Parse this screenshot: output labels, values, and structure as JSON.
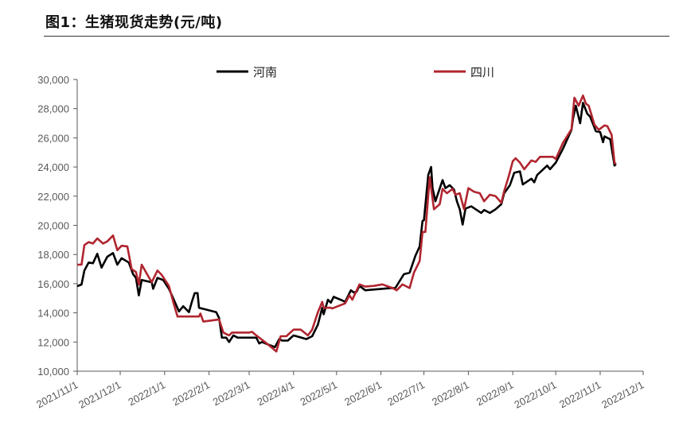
{
  "title": "图1：生猪现货走势(元/吨)",
  "chart_data": {
    "type": "line",
    "title": "图1：生猪现货走势(元/吨)",
    "xlabel": "",
    "ylabel": "",
    "ylim": [
      10000,
      30000
    ],
    "yticks": [
      10000,
      12000,
      14000,
      16000,
      18000,
      20000,
      22000,
      24000,
      26000,
      28000,
      30000
    ],
    "ytick_labels": [
      "10,000",
      "12,000",
      "14,000",
      "16,000",
      "18,000",
      "20,000",
      "22,000",
      "24,000",
      "26,000",
      "28,000",
      "30,000"
    ],
    "xlim": [
      "2021-11-01",
      "2022-12-01"
    ],
    "xtick_labels": [
      "2021/11/1",
      "2021/12/1",
      "2022/1/1",
      "2022/2/1",
      "2022/3/1",
      "2022/4/1",
      "2022/5/1",
      "2022/6/1",
      "2022/7/1",
      "2022/8/1",
      "2022/9/1",
      "2022/10/1",
      "2022/11/1",
      "2022/12/1"
    ],
    "grid": false,
    "legend_position": "top",
    "series": [
      {
        "name": "河南",
        "color": "#000000",
        "points": [
          [
            "2021-11-01",
            15830
          ],
          [
            "2021-11-04",
            15940
          ],
          [
            "2021-11-06",
            16900
          ],
          [
            "2021-11-09",
            17450
          ],
          [
            "2021-11-12",
            17400
          ],
          [
            "2021-11-15",
            18050
          ],
          [
            "2021-11-18",
            17100
          ],
          [
            "2021-11-22",
            17850
          ],
          [
            "2021-11-26",
            18100
          ],
          [
            "2021-11-29",
            17300
          ],
          [
            "2021-12-02",
            17750
          ],
          [
            "2021-12-07",
            17450
          ],
          [
            "2021-12-10",
            16650
          ],
          [
            "2021-12-12",
            16400
          ],
          [
            "2021-12-14",
            15200
          ],
          [
            "2021-12-16",
            16250
          ],
          [
            "2021-12-23",
            16100
          ],
          [
            "2021-12-24",
            15650
          ],
          [
            "2021-12-27",
            16400
          ],
          [
            "2021-12-31",
            16250
          ],
          [
            "2022-01-04",
            15650
          ],
          [
            "2022-01-07",
            15000
          ],
          [
            "2022-01-11",
            14100
          ],
          [
            "2022-01-14",
            14450
          ],
          [
            "2022-01-18",
            14050
          ],
          [
            "2022-01-20",
            14750
          ],
          [
            "2022-01-22",
            15350
          ],
          [
            "2022-01-24",
            15350
          ],
          [
            "2022-01-25",
            14350
          ],
          [
            "2022-02-06",
            14050
          ],
          [
            "2022-02-08",
            13650
          ],
          [
            "2022-02-10",
            12300
          ],
          [
            "2022-02-13",
            12300
          ],
          [
            "2022-02-15",
            12000
          ],
          [
            "2022-02-18",
            12450
          ],
          [
            "2022-02-21",
            12300
          ],
          [
            "2022-03-06",
            12300
          ],
          [
            "2022-03-08",
            11900
          ],
          [
            "2022-03-10",
            12000
          ],
          [
            "2022-03-15",
            11800
          ],
          [
            "2022-03-19",
            11650
          ],
          [
            "2022-03-22",
            12200
          ],
          [
            "2022-03-24",
            12100
          ],
          [
            "2022-03-28",
            12100
          ],
          [
            "2022-04-01",
            12450
          ],
          [
            "2022-04-10",
            12200
          ],
          [
            "2022-04-14",
            12400
          ],
          [
            "2022-04-18",
            13200
          ],
          [
            "2022-04-21",
            14350
          ],
          [
            "2022-04-22",
            13900
          ],
          [
            "2022-04-25",
            14900
          ],
          [
            "2022-04-27",
            14700
          ],
          [
            "2022-04-29",
            15100
          ],
          [
            "2022-05-05",
            14850
          ],
          [
            "2022-05-07",
            14750
          ],
          [
            "2022-05-11",
            15550
          ],
          [
            "2022-05-13",
            15400
          ],
          [
            "2022-05-15",
            15450
          ],
          [
            "2022-05-17",
            15850
          ],
          [
            "2022-05-21",
            15550
          ],
          [
            "2022-06-08",
            15700
          ],
          [
            "2022-06-11",
            15700
          ],
          [
            "2022-06-17",
            16650
          ],
          [
            "2022-06-21",
            16750
          ],
          [
            "2022-06-25",
            17900
          ],
          [
            "2022-06-28",
            18550
          ],
          [
            "2022-06-30",
            20300
          ],
          [
            "2022-07-01",
            20350
          ],
          [
            "2022-07-04",
            23450
          ],
          [
            "2022-07-06",
            24000
          ],
          [
            "2022-07-07",
            22550
          ],
          [
            "2022-07-09",
            21650
          ],
          [
            "2022-07-14",
            23100
          ],
          [
            "2022-07-16",
            22550
          ],
          [
            "2022-07-19",
            22750
          ],
          [
            "2022-07-22",
            22450
          ],
          [
            "2022-07-24",
            21650
          ],
          [
            "2022-07-26",
            21100
          ],
          [
            "2022-07-28",
            20050
          ],
          [
            "2022-07-30",
            21150
          ],
          [
            "2022-08-03",
            21300
          ],
          [
            "2022-08-10",
            20850
          ],
          [
            "2022-08-12",
            21050
          ],
          [
            "2022-08-16",
            20850
          ],
          [
            "2022-08-20",
            21100
          ],
          [
            "2022-08-24",
            21450
          ],
          [
            "2022-08-26",
            22200
          ],
          [
            "2022-08-30",
            22750
          ],
          [
            "2022-09-02",
            23600
          ],
          [
            "2022-09-06",
            23700
          ],
          [
            "2022-09-08",
            22800
          ],
          [
            "2022-09-14",
            23200
          ],
          [
            "2022-09-16",
            22950
          ],
          [
            "2022-09-18",
            23450
          ],
          [
            "2022-09-25",
            24100
          ],
          [
            "2022-09-27",
            23850
          ],
          [
            "2022-10-01",
            24300
          ],
          [
            "2022-10-06",
            25250
          ],
          [
            "2022-10-12",
            26550
          ],
          [
            "2022-10-13",
            27300
          ],
          [
            "2022-10-15",
            28200
          ],
          [
            "2022-10-18",
            27000
          ],
          [
            "2022-10-20",
            28400
          ],
          [
            "2022-10-23",
            27650
          ],
          [
            "2022-10-25",
            27450
          ],
          [
            "2022-10-29",
            26450
          ],
          [
            "2022-11-01",
            26400
          ],
          [
            "2022-11-03",
            25700
          ],
          [
            "2022-11-04",
            26100
          ],
          [
            "2022-11-08",
            25900
          ],
          [
            "2022-11-11",
            24100
          ],
          [
            "2022-11-12",
            24200
          ]
        ]
      },
      {
        "name": "四川",
        "color": "#b0252f",
        "points": [
          [
            "2021-11-01",
            17300
          ],
          [
            "2021-11-04",
            17300
          ],
          [
            "2021-11-06",
            18650
          ],
          [
            "2021-11-09",
            18850
          ],
          [
            "2021-11-12",
            18750
          ],
          [
            "2021-11-15",
            19100
          ],
          [
            "2021-11-19",
            18750
          ],
          [
            "2021-11-22",
            18900
          ],
          [
            "2021-11-26",
            19300
          ],
          [
            "2021-11-29",
            18300
          ],
          [
            "2021-12-02",
            18600
          ],
          [
            "2021-12-06",
            18550
          ],
          [
            "2021-12-09",
            17000
          ],
          [
            "2021-12-12",
            16800
          ],
          [
            "2021-12-14",
            15950
          ],
          [
            "2021-12-16",
            17300
          ],
          [
            "2021-12-23",
            16100
          ],
          [
            "2021-12-27",
            16900
          ],
          [
            "2021-12-30",
            16600
          ],
          [
            "2022-01-04",
            15850
          ],
          [
            "2022-01-07",
            14750
          ],
          [
            "2022-01-10",
            13750
          ],
          [
            "2022-01-25",
            13750
          ],
          [
            "2022-01-26",
            13950
          ],
          [
            "2022-01-28",
            13400
          ],
          [
            "2022-02-08",
            13550
          ],
          [
            "2022-02-11",
            12650
          ],
          [
            "2022-02-15",
            12450
          ],
          [
            "2022-02-17",
            12650
          ],
          [
            "2022-03-01",
            12650
          ],
          [
            "2022-03-03",
            12700
          ],
          [
            "2022-03-06",
            12450
          ],
          [
            "2022-03-12",
            12000
          ],
          [
            "2022-03-17",
            11600
          ],
          [
            "2022-03-20",
            11350
          ],
          [
            "2022-03-23",
            12400
          ],
          [
            "2022-03-27",
            12400
          ],
          [
            "2022-04-01",
            12850
          ],
          [
            "2022-04-06",
            12850
          ],
          [
            "2022-04-11",
            12450
          ],
          [
            "2022-04-14",
            12850
          ],
          [
            "2022-04-18",
            14050
          ],
          [
            "2022-04-21",
            14750
          ],
          [
            "2022-04-22",
            14350
          ],
          [
            "2022-04-27",
            14350
          ],
          [
            "2022-04-28",
            14300
          ],
          [
            "2022-05-07",
            14650
          ],
          [
            "2022-05-10",
            15200
          ],
          [
            "2022-05-12",
            14900
          ],
          [
            "2022-05-17",
            15950
          ],
          [
            "2022-05-21",
            15800
          ],
          [
            "2022-05-27",
            15850
          ],
          [
            "2022-06-02",
            15950
          ],
          [
            "2022-06-09",
            15700
          ],
          [
            "2022-06-12",
            15550
          ],
          [
            "2022-06-16",
            15950
          ],
          [
            "2022-06-21",
            15700
          ],
          [
            "2022-06-24",
            16750
          ],
          [
            "2022-06-28",
            17550
          ],
          [
            "2022-06-30",
            19550
          ],
          [
            "2022-07-02",
            19550
          ],
          [
            "2022-07-05",
            23300
          ],
          [
            "2022-07-08",
            21100
          ],
          [
            "2022-07-12",
            21450
          ],
          [
            "2022-07-14",
            22500
          ],
          [
            "2022-07-17",
            22200
          ],
          [
            "2022-07-21",
            22500
          ],
          [
            "2022-07-23",
            22100
          ],
          [
            "2022-07-26",
            22200
          ],
          [
            "2022-07-29",
            21100
          ],
          [
            "2022-08-01",
            22550
          ],
          [
            "2022-08-05",
            22300
          ],
          [
            "2022-08-09",
            22200
          ],
          [
            "2022-08-12",
            21650
          ],
          [
            "2022-08-16",
            22100
          ],
          [
            "2022-08-20",
            22000
          ],
          [
            "2022-08-24",
            21550
          ],
          [
            "2022-08-26",
            22350
          ],
          [
            "2022-08-29",
            23300
          ],
          [
            "2022-09-01",
            24400
          ],
          [
            "2022-09-03",
            24600
          ],
          [
            "2022-09-06",
            24300
          ],
          [
            "2022-09-09",
            23850
          ],
          [
            "2022-09-14",
            24450
          ],
          [
            "2022-09-17",
            24350
          ],
          [
            "2022-09-20",
            24700
          ],
          [
            "2022-09-29",
            24700
          ],
          [
            "2022-10-01",
            24550
          ],
          [
            "2022-10-06",
            25650
          ],
          [
            "2022-10-12",
            26600
          ],
          [
            "2022-10-14",
            28750
          ],
          [
            "2022-10-17",
            28200
          ],
          [
            "2022-10-20",
            28900
          ],
          [
            "2022-10-22",
            28350
          ],
          [
            "2022-10-24",
            28200
          ],
          [
            "2022-10-28",
            26900
          ],
          [
            "2022-10-31",
            26550
          ],
          [
            "2022-11-04",
            26850
          ],
          [
            "2022-11-06",
            26800
          ],
          [
            "2022-11-09",
            26200
          ],
          [
            "2022-11-11",
            24300
          ],
          [
            "2022-11-12",
            24200
          ]
        ]
      }
    ]
  }
}
